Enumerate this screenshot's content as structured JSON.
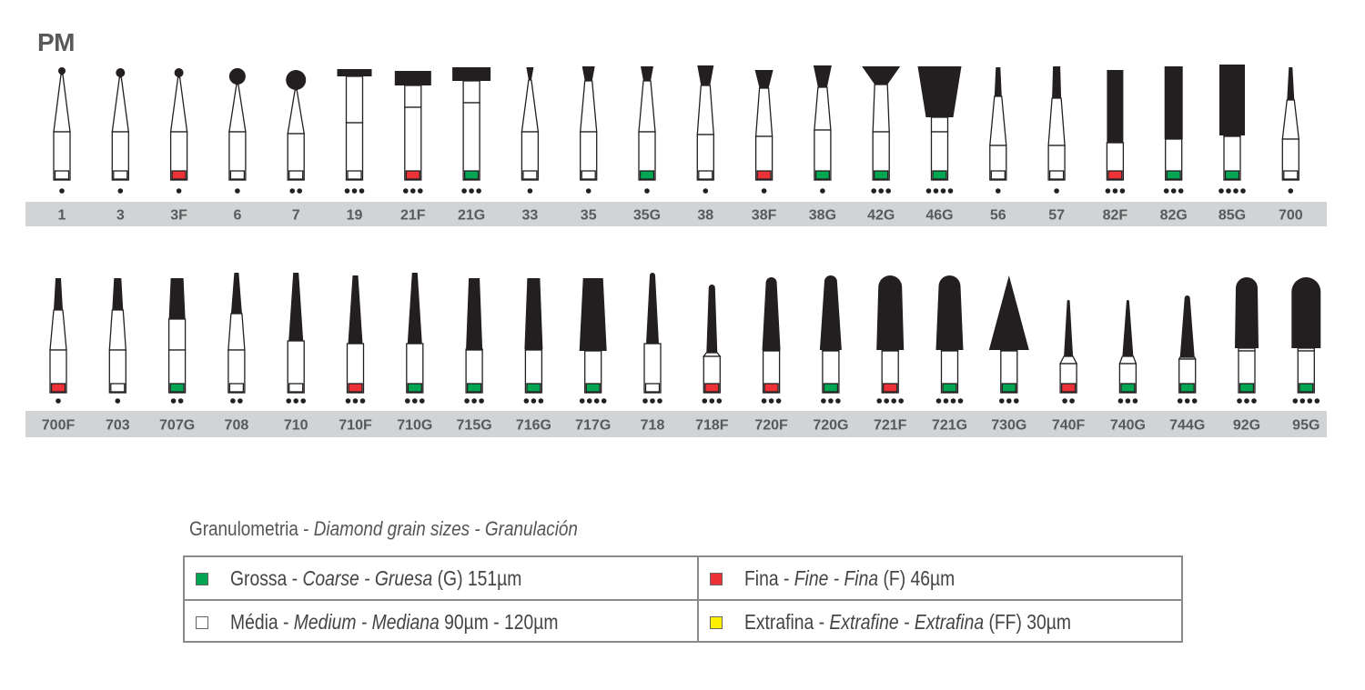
{
  "title": "PM",
  "colors": {
    "G": "#00a651",
    "F": "#ed3237",
    "M": "#ffffff",
    "FF": "#fff200",
    "label_bar": "#d1d3d4",
    "ink": "#231f20"
  },
  "rows": [
    {
      "burs": [
        {
          "code": "1",
          "grit": "M",
          "dots": 1,
          "shape": "ball"
        },
        {
          "code": "3",
          "grit": "M",
          "dots": 1,
          "shape": "ball"
        },
        {
          "code": "3F",
          "grit": "F",
          "dots": 1,
          "shape": "ball"
        },
        {
          "code": "6",
          "grit": "M",
          "dots": 1,
          "shape": "ball"
        },
        {
          "code": "7",
          "grit": "M",
          "dots": 2,
          "shape": "ball"
        },
        {
          "code": "19",
          "grit": "M",
          "dots": 3,
          "shape": "wheel"
        },
        {
          "code": "21F",
          "grit": "F",
          "dots": 3,
          "shape": "wheel"
        },
        {
          "code": "21G",
          "grit": "G",
          "dots": 3,
          "shape": "wheel"
        },
        {
          "code": "33",
          "grit": "M",
          "dots": 1,
          "shape": "inverted-cone"
        },
        {
          "code": "35",
          "grit": "M",
          "dots": 1,
          "shape": "inverted-cone"
        },
        {
          "code": "35G",
          "grit": "G",
          "dots": 1,
          "shape": "inverted-cone"
        },
        {
          "code": "38",
          "grit": "M",
          "dots": 1,
          "shape": "inverted-cone"
        },
        {
          "code": "38F",
          "grit": "F",
          "dots": 1,
          "shape": "inverted-cone"
        },
        {
          "code": "38G",
          "grit": "G",
          "dots": 1,
          "shape": "inverted-cone"
        },
        {
          "code": "42G",
          "grit": "G",
          "dots": 3,
          "shape": "inverted-cone"
        },
        {
          "code": "46G",
          "grit": "G",
          "dots": 4,
          "shape": "inverted-cone"
        },
        {
          "code": "56",
          "grit": "M",
          "dots": 1,
          "shape": "cylinder"
        },
        {
          "code": "57",
          "grit": "M",
          "dots": 1,
          "shape": "cylinder"
        },
        {
          "code": "82F",
          "grit": "F",
          "dots": 3,
          "shape": "cylinder"
        },
        {
          "code": "82G",
          "grit": "G",
          "dots": 3,
          "shape": "cylinder"
        },
        {
          "code": "85G",
          "grit": "G",
          "dots": 4,
          "shape": "cylinder"
        },
        {
          "code": "700",
          "grit": "M",
          "dots": 1,
          "shape": "tapered-fissure"
        }
      ]
    },
    {
      "burs": [
        {
          "code": "700F",
          "grit": "F",
          "dots": 1,
          "shape": "tapered-fissure"
        },
        {
          "code": "703",
          "grit": "M",
          "dots": 1,
          "shape": "tapered-fissure"
        },
        {
          "code": "707G",
          "grit": "G",
          "dots": 2,
          "shape": "tapered-fissure"
        },
        {
          "code": "708",
          "grit": "M",
          "dots": 2,
          "shape": "tapered-fissure"
        },
        {
          "code": "710",
          "grit": "M",
          "dots": 3,
          "shape": "tapered-fissure"
        },
        {
          "code": "710F",
          "grit": "F",
          "dots": 3,
          "shape": "tapered-fissure"
        },
        {
          "code": "710G",
          "grit": "G",
          "dots": 3,
          "shape": "tapered-fissure"
        },
        {
          "code": "715G",
          "grit": "G",
          "dots": 3,
          "shape": "tapered-fissure"
        },
        {
          "code": "716G",
          "grit": "G",
          "dots": 3,
          "shape": "tapered-fissure"
        },
        {
          "code": "717G",
          "grit": "G",
          "dots": 4,
          "shape": "tapered-fissure"
        },
        {
          "code": "718",
          "grit": "M",
          "dots": 3,
          "shape": "round-end-taper"
        },
        {
          "code": "718F",
          "grit": "F",
          "dots": 3,
          "shape": "round-end-taper"
        },
        {
          "code": "720F",
          "grit": "F",
          "dots": 3,
          "shape": "round-end-taper"
        },
        {
          "code": "720G",
          "grit": "G",
          "dots": 3,
          "shape": "round-end-taper"
        },
        {
          "code": "721F",
          "grit": "F",
          "dots": 4,
          "shape": "round-end-taper"
        },
        {
          "code": "721G",
          "grit": "G",
          "dots": 4,
          "shape": "round-end-taper"
        },
        {
          "code": "730G",
          "grit": "G",
          "dots": 3,
          "shape": "cone"
        },
        {
          "code": "740F",
          "grit": "F",
          "dots": 2,
          "shape": "flame"
        },
        {
          "code": "740G",
          "grit": "G",
          "dots": 3,
          "shape": "flame"
        },
        {
          "code": "744G",
          "grit": "G",
          "dots": 3,
          "shape": "flame"
        },
        {
          "code": "92G",
          "grit": "G",
          "dots": 3,
          "shape": "round-end-cylinder"
        },
        {
          "code": "95G",
          "grit": "G",
          "dots": 4,
          "shape": "round-end-cylinder"
        }
      ]
    }
  ],
  "legend": {
    "title": {
      "regular": "Granulometria - ",
      "italic": "Diamond grain sizes - Granulación"
    },
    "items": [
      {
        "grit": "G",
        "a": "Grossa - ",
        "b": "Coarse - Gruesa",
        "c": " (G) 151µm"
      },
      {
        "grit": "F",
        "a": "Fina - ",
        "b": "Fine - Fina",
        "c": " (F) 46µm"
      },
      {
        "grit": "M",
        "a": "Média - ",
        "b": "Medium - Mediana",
        "c": "  90µm - 120µm"
      },
      {
        "grit": "FF",
        "a": "Extrafina - ",
        "b": "Extrafine - Extrafina",
        "c": " (FF) 30µm"
      }
    ]
  }
}
